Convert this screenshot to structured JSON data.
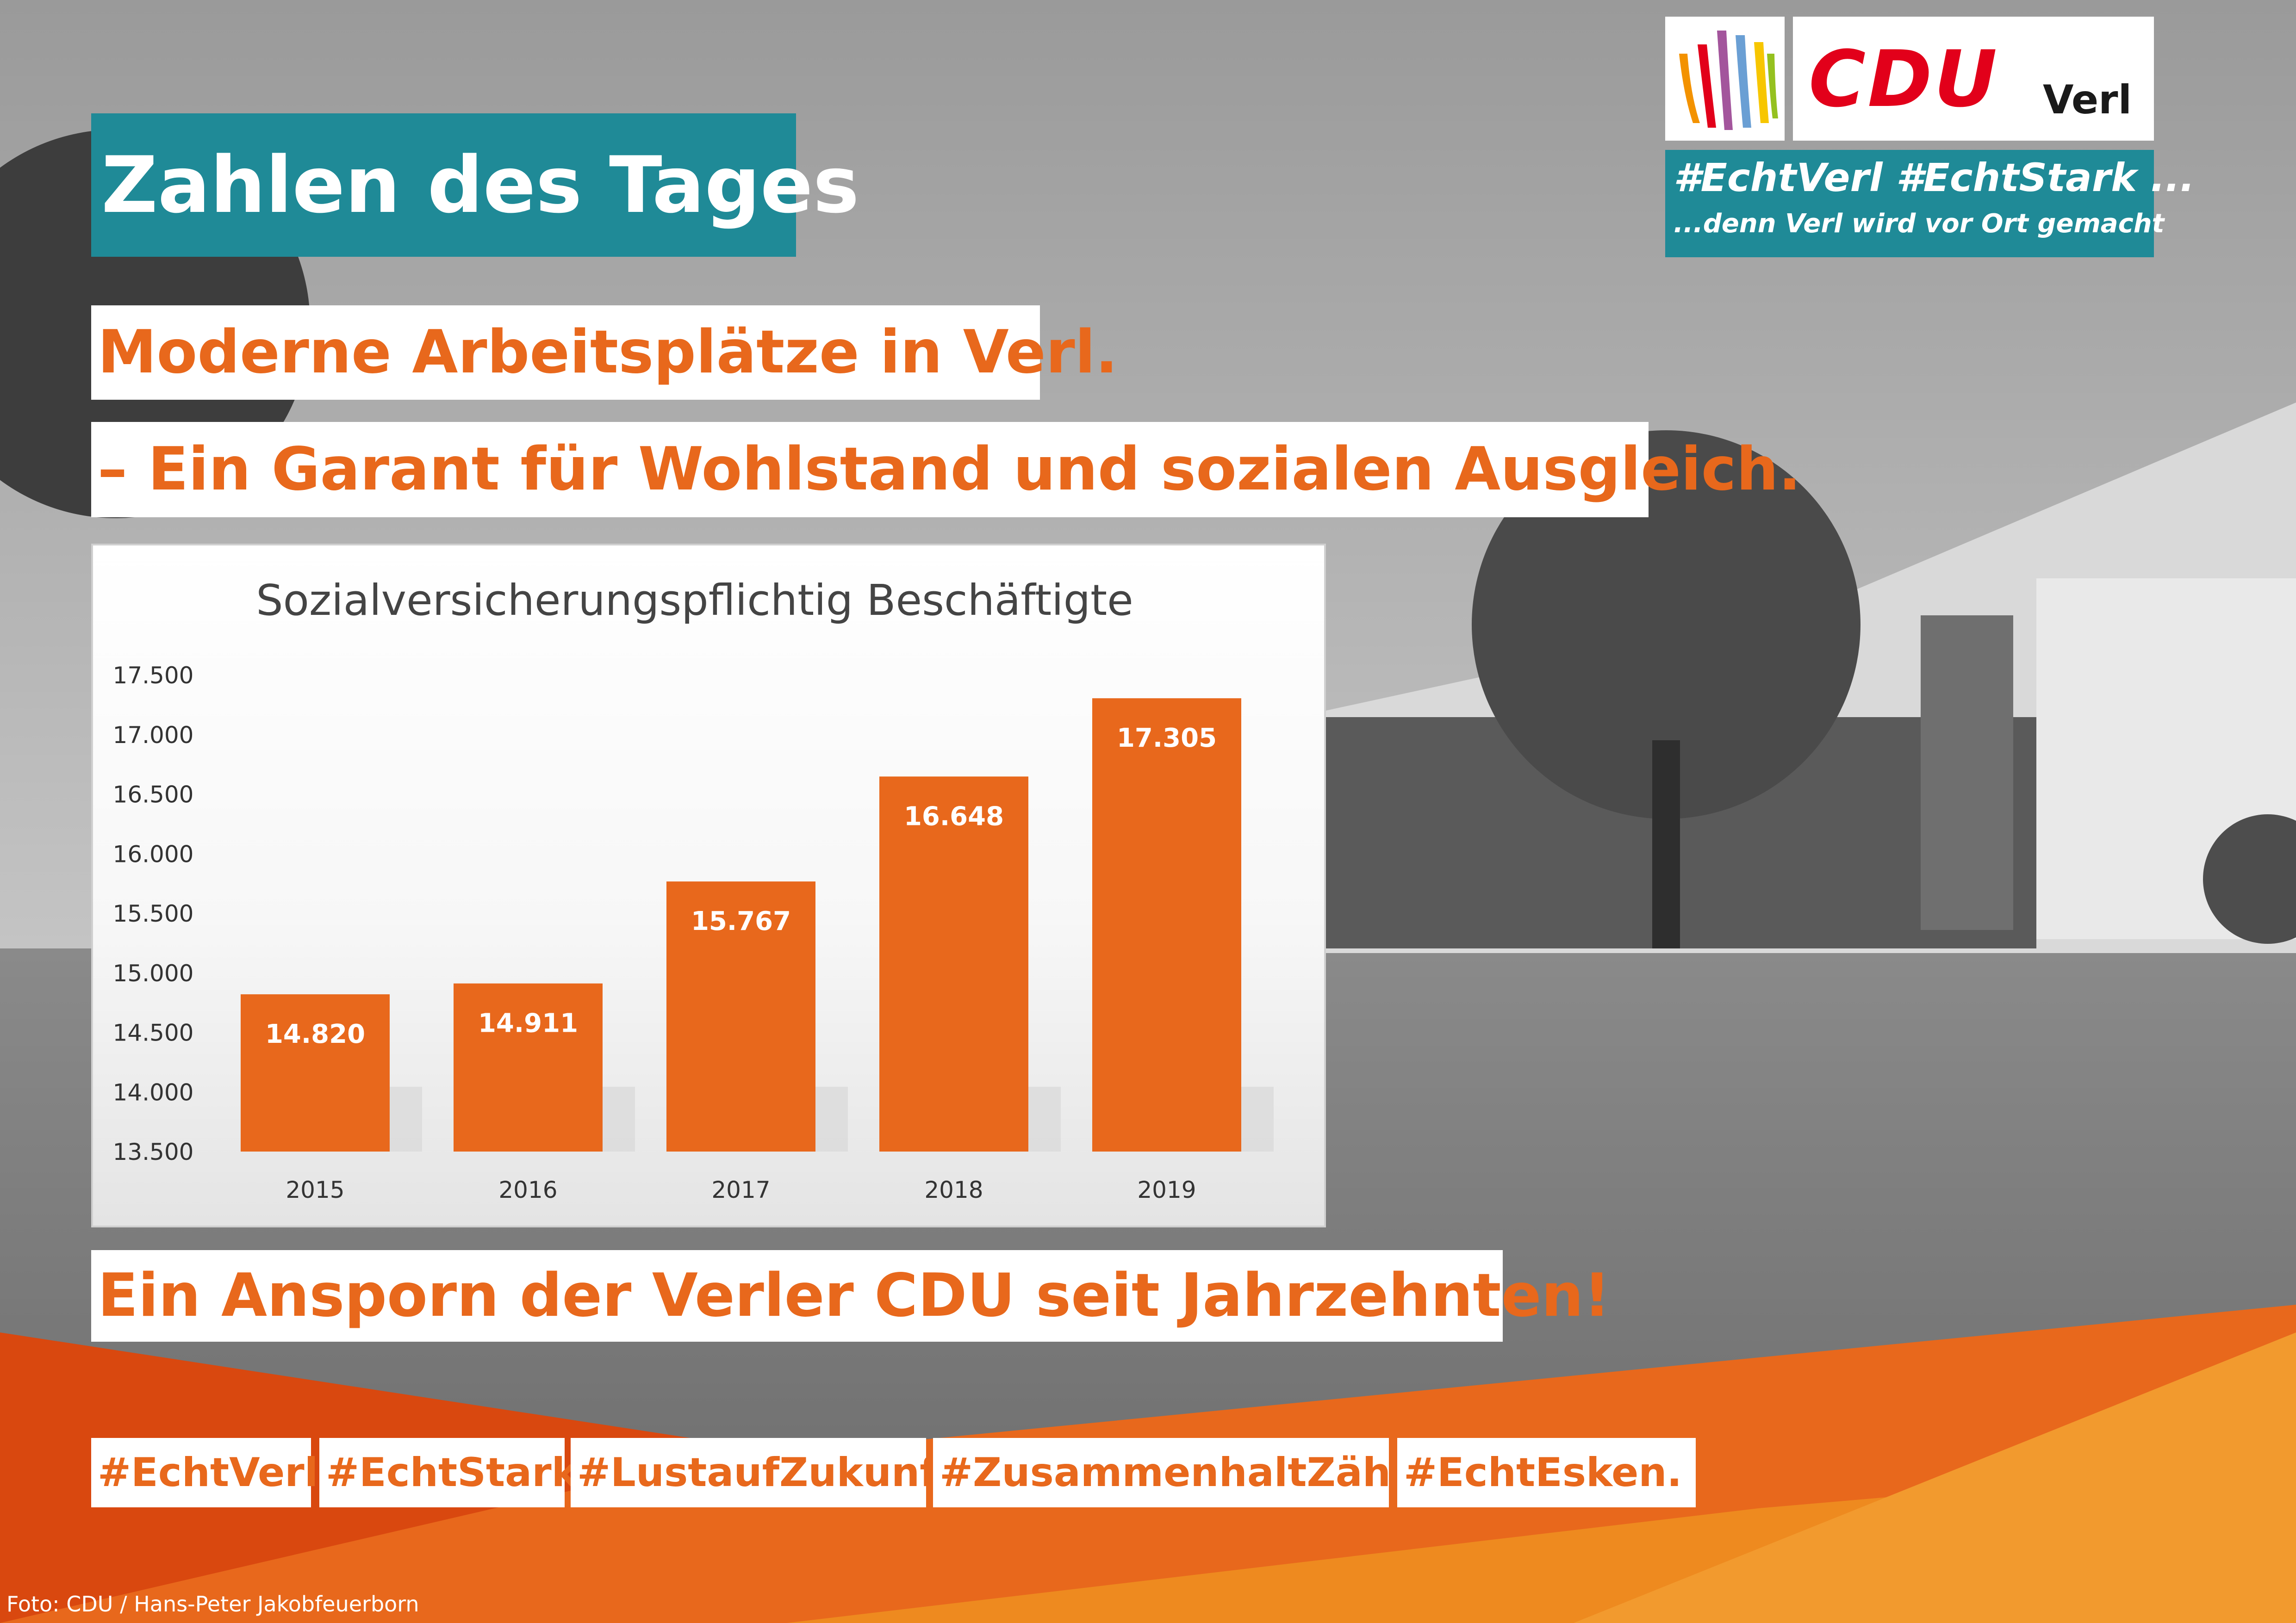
{
  "header": {
    "title": "Zahlen des Tages"
  },
  "headline": {
    "line1": "Moderne Arbeitsplätze in Verl.",
    "line2": "– Ein Garant für Wohlstand und sozialen Ausgleich."
  },
  "slogan": "Ein Ansporn der Verler CDU seit Jahrzehnten!",
  "hashtags": [
    "#EchtVerl.",
    "#EchtStark",
    "#LustaufZukunft",
    "#ZusammenhaltZählt!",
    "#EchtEsken."
  ],
  "logo": {
    "party": "CDU",
    "town": "Verl",
    "hashtags": "#EchtVerl #EchtStark ...",
    "subline": "...denn Verl wird vor Ort gemacht"
  },
  "credit": "Foto: CDU / Hans-Peter Jakobfeuerborn",
  "colors": {
    "teal": "#1f8a97",
    "orange": "#e8681c",
    "cdu_red": "#e2001a"
  },
  "chart_data": {
    "type": "bar",
    "title": "Sozialversicherungspflichtig Beschäftigte",
    "categories": [
      "2015",
      "2016",
      "2017",
      "2018",
      "2019"
    ],
    "values": [
      14820,
      14911,
      15767,
      16648,
      17305
    ],
    "value_labels": [
      "14.820",
      "14.911",
      "15.767",
      "16.648",
      "17.305"
    ],
    "ylim": [
      13500,
      17500
    ],
    "yticks": [
      13500,
      14000,
      14500,
      15000,
      15500,
      16000,
      16500,
      17000,
      17500
    ],
    "ytick_labels": [
      "13.500",
      "14.000",
      "14.500",
      "15.000",
      "15.500",
      "16.000",
      "16.500",
      "17.000",
      "17.500"
    ],
    "xlabel": "",
    "ylabel": "",
    "grid": false,
    "bar_color": "#e8681c"
  }
}
